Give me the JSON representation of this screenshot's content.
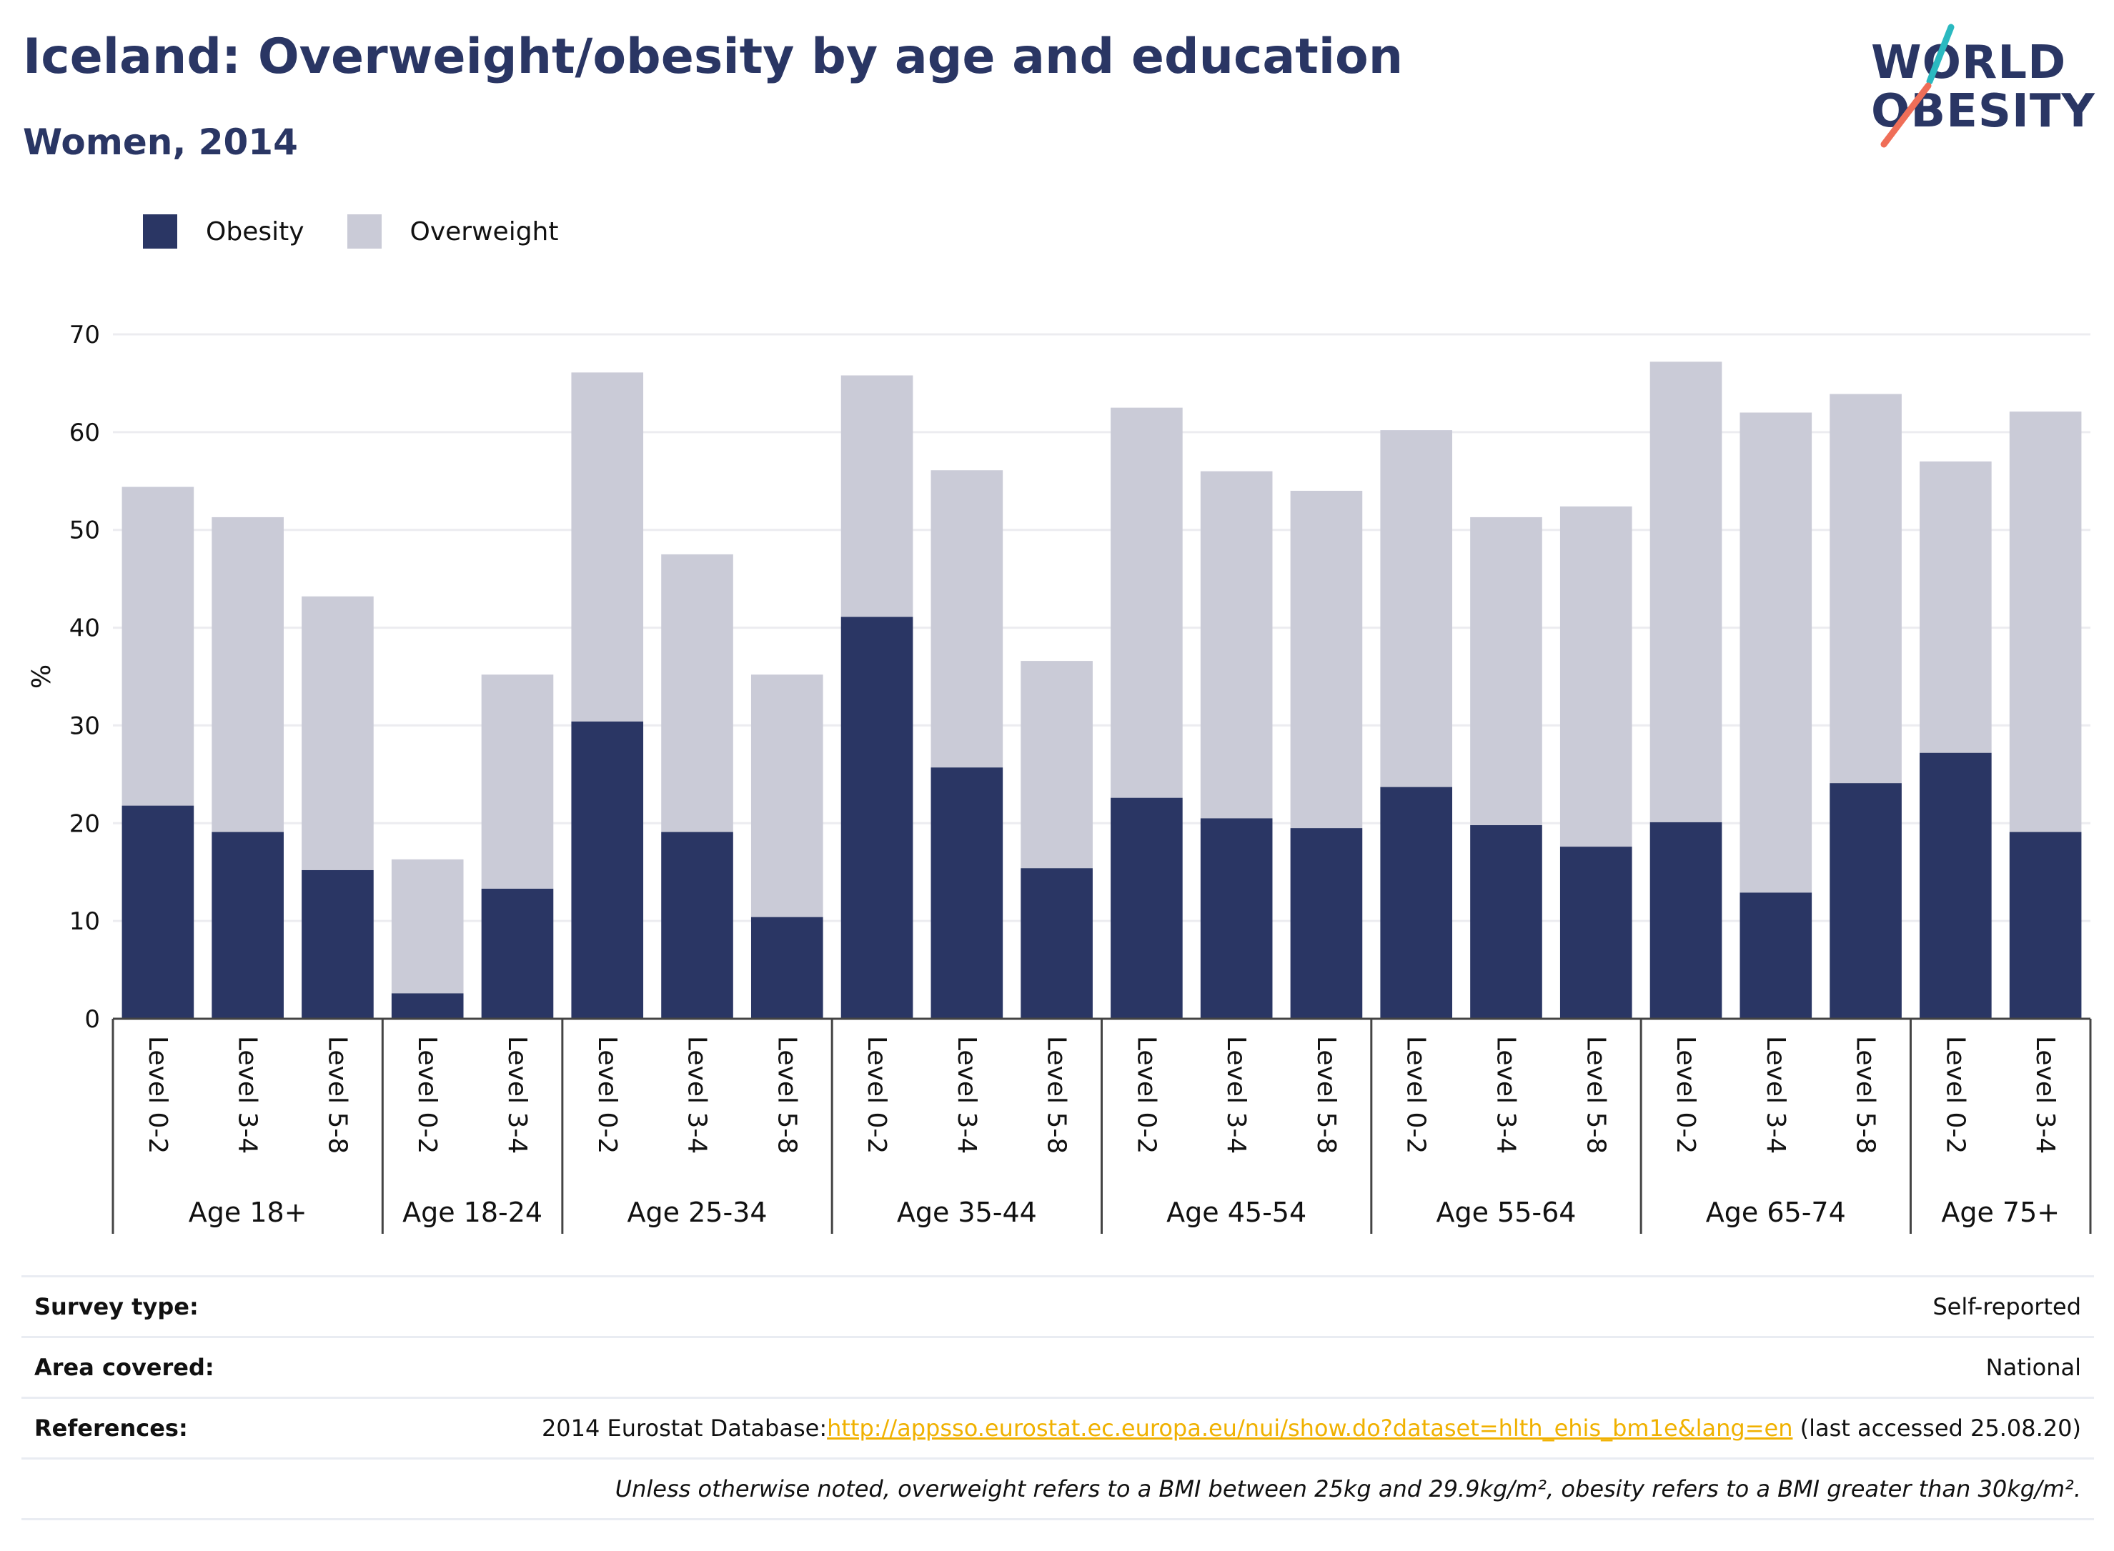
{
  "header": {
    "title": "Iceland: Overweight/obesity by age and education",
    "subtitle": "Women, 2014",
    "logo_line1": "WORLD",
    "logo_line2": "OBESITY"
  },
  "colors": {
    "obesity": "#2a3664",
    "overweight": "#cacbd7",
    "accent_teal": "#2ab9c0",
    "accent_coral": "#ef6e58",
    "link": "#f0b100"
  },
  "legend": [
    {
      "label": "Obesity",
      "color": "#2a3664"
    },
    {
      "label": "Overweight",
      "color": "#cacbd7"
    }
  ],
  "chart_data": {
    "type": "bar",
    "stacked": true,
    "ylabel": "%",
    "ylim": [
      0,
      70
    ],
    "yticks": [
      0,
      10,
      20,
      30,
      40,
      50,
      60,
      70
    ],
    "grid": true,
    "legend_position": "top-left",
    "groups": [
      {
        "label": "Age 18+",
        "categories": [
          "Level 0-2",
          "Level 3-4",
          "Level 5-8"
        ]
      },
      {
        "label": "Age 18-24",
        "categories": [
          "Level 0-2",
          "Level 3-4"
        ]
      },
      {
        "label": "Age 25-34",
        "categories": [
          "Level 0-2",
          "Level 3-4",
          "Level 5-8"
        ]
      },
      {
        "label": "Age 35-44",
        "categories": [
          "Level 0-2",
          "Level 3-4",
          "Level 5-8"
        ]
      },
      {
        "label": "Age 45-54",
        "categories": [
          "Level 0-2",
          "Level 3-4",
          "Level 5-8"
        ]
      },
      {
        "label": "Age 55-64",
        "categories": [
          "Level 0-2",
          "Level 3-4",
          "Level 5-8"
        ]
      },
      {
        "label": "Age 65-74",
        "categories": [
          "Level 0-2",
          "Level 3-4",
          "Level 5-8"
        ]
      },
      {
        "label": "Age 75+",
        "categories": [
          "Level 0-2",
          "Level 3-4"
        ]
      }
    ],
    "series": [
      {
        "name": "Obesity",
        "values": [
          21.8,
          19.1,
          15.2,
          2.6,
          13.3,
          30.4,
          19.1,
          10.4,
          41.1,
          25.7,
          15.4,
          22.6,
          20.5,
          19.5,
          23.7,
          19.8,
          17.6,
          20.1,
          12.9,
          24.1,
          27.2,
          19.1
        ]
      },
      {
        "name": "Overweight",
        "values": [
          32.6,
          32.2,
          28.0,
          13.7,
          21.9,
          35.7,
          28.4,
          24.8,
          24.7,
          30.4,
          21.2,
          39.9,
          35.5,
          34.5,
          36.5,
          31.5,
          34.8,
          47.1,
          49.1,
          39.8,
          29.8,
          43.0
        ]
      }
    ]
  },
  "info_table": {
    "survey_type_label": "Survey type:",
    "survey_type_value": "Self-reported",
    "area_label": "Area covered:",
    "area_value": "National",
    "references_label": "References:",
    "references_prefix": "2014 Eurostat Database:",
    "references_link": "http://appsso.eurostat.ec.europa.eu/nui/show.do?dataset=hlth_ehis_bm1e&lang=en",
    "references_suffix": " (last accessed 25.08.20)",
    "note": "Unless otherwise noted, overweight refers to a BMI between 25kg and 29.9kg/m², obesity refers to a BMI greater than 30kg/m²."
  }
}
